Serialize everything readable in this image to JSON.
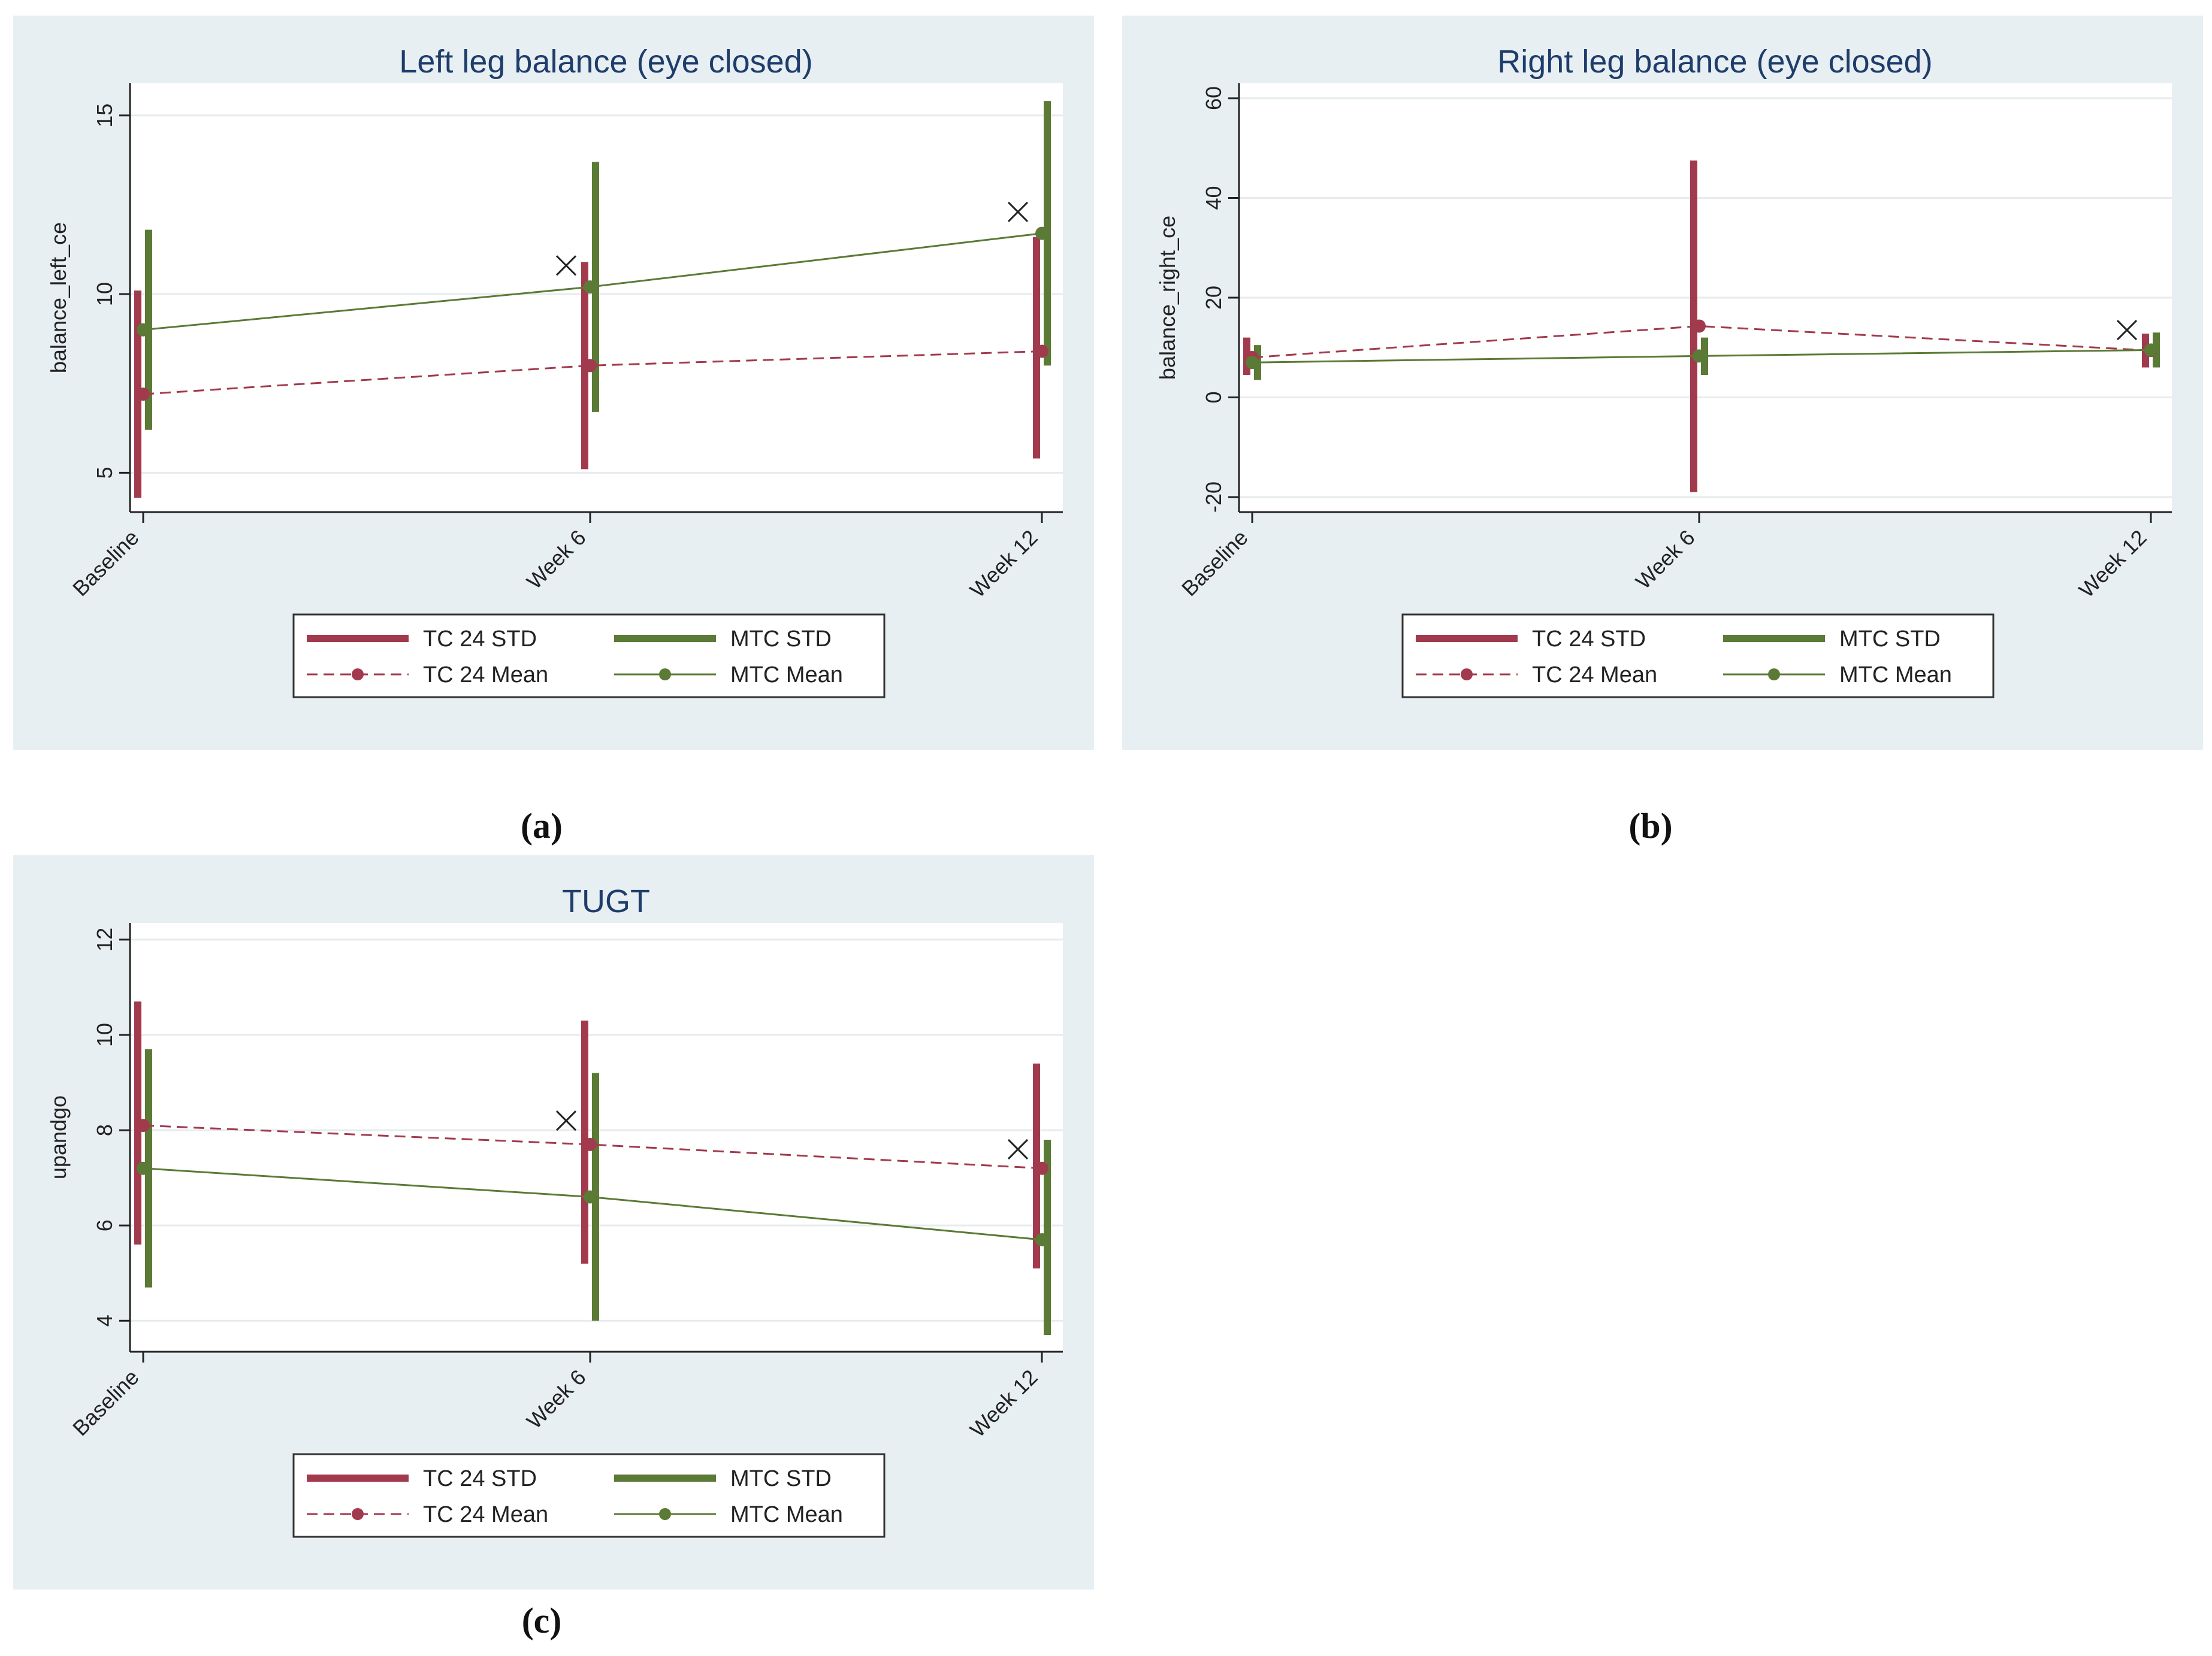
{
  "colors": {
    "tc": "#a23a4e",
    "mtc": "#5b7a36",
    "panel_bg": "#e8eff2",
    "plot_bg": "#ffffff",
    "grid": "#e6ebee",
    "title": "#1e3d6b",
    "axis": "#222222"
  },
  "legend": {
    "tc_std": "TC 24 STD",
    "mtc_std": "MTC STD",
    "tc_mean": "TC 24 Mean",
    "mtc_mean": "MTC Mean"
  },
  "chart_data": [
    {
      "id": "a",
      "caption": "(a)",
      "type": "line",
      "title": "Left leg balance (eye closed)",
      "xlabel": "",
      "ylabel": "balance_left_ce",
      "categories": [
        "Baseline",
        "Week 6",
        "Week 12"
      ],
      "ylim": [
        3.9,
        15.9
      ],
      "yticks": [
        5,
        10,
        15
      ],
      "ytick_labels": [
        "5",
        "10",
        "15"
      ],
      "grid": true,
      "series": [
        {
          "name": "TC 24 Mean",
          "std_name": "TC 24 STD",
          "key": "tc",
          "dashed": true,
          "values": [
            7.2,
            8.0,
            8.4
          ],
          "lower": [
            4.3,
            5.1,
            5.4
          ],
          "upper": [
            10.1,
            10.9,
            11.6
          ]
        },
        {
          "name": "MTC Mean",
          "std_name": "MTC STD",
          "key": "mtc",
          "dashed": false,
          "values": [
            9.0,
            10.2,
            11.7
          ],
          "lower": [
            6.2,
            6.7,
            8.0
          ],
          "upper": [
            11.8,
            13.7,
            15.4
          ]
        }
      ],
      "markers": [
        {
          "category": "Week 6",
          "y": 10.8
        },
        {
          "category": "Week 12",
          "y": 12.3
        }
      ]
    },
    {
      "id": "b",
      "caption": "(b)",
      "type": "line",
      "title": "Right leg balance (eye closed)",
      "xlabel": "",
      "ylabel": "balance_right_ce",
      "categories": [
        "Baseline",
        "Week 6",
        "Week 12"
      ],
      "ylim": [
        -23,
        63
      ],
      "yticks": [
        -20,
        0,
        20,
        40,
        60
      ],
      "ytick_labels": [
        "-20",
        "0",
        "20",
        "40",
        "60"
      ],
      "grid": true,
      "series": [
        {
          "name": "TC 24 Mean",
          "std_name": "TC 24 STD",
          "key": "tc",
          "dashed": true,
          "values": [
            8.0,
            14.3,
            9.4
          ],
          "lower": [
            4.5,
            -19.0,
            6.0
          ],
          "upper": [
            12.0,
            47.5,
            12.8
          ]
        },
        {
          "name": "MTC Mean",
          "std_name": "MTC STD",
          "key": "mtc",
          "dashed": false,
          "values": [
            7.0,
            8.3,
            9.5
          ],
          "lower": [
            3.5,
            4.5,
            6.0
          ],
          "upper": [
            10.5,
            12.0,
            13.0
          ]
        }
      ],
      "markers": [
        {
          "category": "Week 12",
          "y": 13.5
        }
      ]
    },
    {
      "id": "c",
      "caption": "(c)",
      "type": "line",
      "title": "TUGT",
      "xlabel": "",
      "ylabel": "upandgo",
      "categories": [
        "Baseline",
        "Week 6",
        "Week 12"
      ],
      "ylim": [
        3.35,
        12.35
      ],
      "yticks": [
        4,
        6,
        8,
        10,
        12
      ],
      "ytick_labels": [
        "4",
        "6",
        "8",
        "10",
        "12"
      ],
      "grid": true,
      "series": [
        {
          "name": "TC 24 Mean",
          "std_name": "TC 24 STD",
          "key": "tc",
          "dashed": true,
          "values": [
            8.1,
            7.7,
            7.2
          ],
          "lower": [
            5.6,
            5.2,
            5.1
          ],
          "upper": [
            10.7,
            10.3,
            9.4
          ]
        },
        {
          "name": "MTC Mean",
          "std_name": "MTC STD",
          "key": "mtc",
          "dashed": false,
          "values": [
            7.2,
            6.6,
            5.7
          ],
          "lower": [
            4.7,
            4.0,
            3.7
          ],
          "upper": [
            9.7,
            9.2,
            7.8
          ]
        }
      ],
      "markers": [
        {
          "category": "Week 6",
          "y": 8.2
        },
        {
          "category": "Week 12",
          "y": 7.6
        }
      ]
    }
  ]
}
